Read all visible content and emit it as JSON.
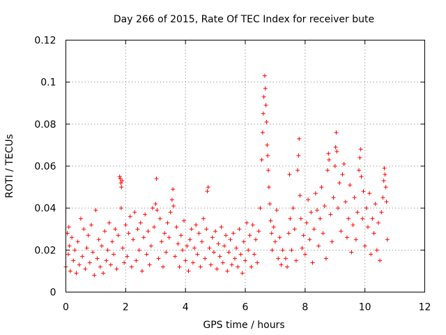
{
  "chart_data": {
    "type": "scatter",
    "title": "Day 266 of 2015, Rate Of TEC Index for receiver bute",
    "xlabel": "GPS time / hours",
    "ylabel": "ROTI / TECUs",
    "xlim": [
      0,
      12
    ],
    "ylim": [
      0,
      0.12
    ],
    "xticks": [
      0,
      2,
      4,
      6,
      8,
      10,
      12
    ],
    "xtick_labels": [
      "0",
      "2",
      "4",
      "6",
      "8",
      "10",
      "12"
    ],
    "yticks": [
      0,
      0.02,
      0.04,
      0.06,
      0.08,
      0.1,
      0.12
    ],
    "ytick_labels": [
      "0",
      "0.02",
      "0.04",
      "0.06",
      "0.08",
      "0.1",
      "0.12"
    ],
    "grid": true,
    "marker": "+",
    "series": [
      {
        "name": "ROTI",
        "color": "#ff0000",
        "points": [
          [
            0.0,
            0.012
          ],
          [
            0.05,
            0.028
          ],
          [
            0.08,
            0.018
          ],
          [
            0.1,
            0.031
          ],
          [
            0.12,
            0.022
          ],
          [
            0.15,
            0.01
          ],
          [
            0.2,
            0.026
          ],
          [
            0.25,
            0.015
          ],
          [
            0.3,
            0.02
          ],
          [
            0.35,
            0.009
          ],
          [
            0.4,
            0.024
          ],
          [
            0.45,
            0.013
          ],
          [
            0.5,
            0.035
          ],
          [
            0.55,
            0.017
          ],
          [
            0.6,
            0.03
          ],
          [
            0.65,
            0.011
          ],
          [
            0.7,
            0.021
          ],
          [
            0.75,
            0.027
          ],
          [
            0.8,
            0.014
          ],
          [
            0.85,
            0.032
          ],
          [
            0.9,
            0.019
          ],
          [
            0.95,
            0.008
          ],
          [
            1.0,
            0.039
          ],
          [
            1.05,
            0.016
          ],
          [
            1.1,
            0.025
          ],
          [
            1.15,
            0.012
          ],
          [
            1.2,
            0.022
          ],
          [
            1.25,
            0.009
          ],
          [
            1.3,
            0.029
          ],
          [
            1.35,
            0.015
          ],
          [
            1.4,
            0.02
          ],
          [
            1.45,
            0.033
          ],
          [
            1.5,
            0.013
          ],
          [
            1.55,
            0.024
          ],
          [
            1.6,
            0.018
          ],
          [
            1.65,
            0.03
          ],
          [
            1.7,
            0.011
          ],
          [
            1.75,
            0.027
          ],
          [
            1.8,
            0.055
          ],
          [
            1.82,
            0.054
          ],
          [
            1.84,
            0.052
          ],
          [
            1.86,
            0.05
          ],
          [
            1.88,
            0.053
          ],
          [
            1.85,
            0.04
          ],
          [
            1.9,
            0.021
          ],
          [
            1.95,
            0.014
          ],
          [
            2.0,
            0.032
          ],
          [
            2.05,
            0.017
          ],
          [
            2.1,
            0.028
          ],
          [
            2.15,
            0.036
          ],
          [
            2.2,
            0.012
          ],
          [
            2.25,
            0.025
          ],
          [
            2.3,
            0.038
          ],
          [
            2.35,
            0.015
          ],
          [
            2.4,
            0.03
          ],
          [
            2.45,
            0.02
          ],
          [
            2.5,
            0.033
          ],
          [
            2.55,
            0.01
          ],
          [
            2.6,
            0.026
          ],
          [
            2.65,
            0.037
          ],
          [
            2.7,
            0.018
          ],
          [
            2.75,
            0.029
          ],
          [
            2.8,
            0.013
          ],
          [
            2.85,
            0.022
          ],
          [
            2.9,
            0.04
          ],
          [
            2.95,
            0.031
          ],
          [
            3.0,
            0.042
          ],
          [
            3.03,
            0.054
          ],
          [
            3.05,
            0.039
          ],
          [
            3.1,
            0.016
          ],
          [
            3.15,
            0.035
          ],
          [
            3.2,
            0.024
          ],
          [
            3.25,
            0.012
          ],
          [
            3.3,
            0.028
          ],
          [
            3.35,
            0.019
          ],
          [
            3.4,
            0.033
          ],
          [
            3.45,
            0.026
          ],
          [
            3.5,
            0.038
          ],
          [
            3.55,
            0.044
          ],
          [
            3.58,
            0.049
          ],
          [
            3.6,
            0.041
          ],
          [
            3.65,
            0.017
          ],
          [
            3.7,
            0.031
          ],
          [
            3.75,
            0.023
          ],
          [
            3.8,
            0.012
          ],
          [
            3.85,
            0.027
          ],
          [
            3.9,
            0.02
          ],
          [
            3.95,
            0.034
          ],
          [
            4.0,
            0.015
          ],
          [
            4.05,
            0.022
          ],
          [
            4.1,
            0.01
          ],
          [
            4.15,
            0.025
          ],
          [
            4.2,
            0.03
          ],
          [
            4.25,
            0.014
          ],
          [
            4.3,
            0.021
          ],
          [
            4.35,
            0.032
          ],
          [
            4.4,
            0.018
          ],
          [
            4.45,
            0.028
          ],
          [
            4.5,
            0.012
          ],
          [
            4.55,
            0.024
          ],
          [
            4.6,
            0.035
          ],
          [
            4.65,
            0.016
          ],
          [
            4.7,
            0.03
          ],
          [
            4.73,
            0.048
          ],
          [
            4.76,
            0.05
          ],
          [
            4.8,
            0.021
          ],
          [
            4.85,
            0.013
          ],
          [
            4.9,
            0.026
          ],
          [
            4.95,
            0.019
          ],
          [
            5.0,
            0.029
          ],
          [
            5.05,
            0.011
          ],
          [
            5.1,
            0.023
          ],
          [
            5.15,
            0.017
          ],
          [
            5.2,
            0.031
          ],
          [
            5.25,
            0.014
          ],
          [
            5.3,
            0.022
          ],
          [
            5.35,
            0.027
          ],
          [
            5.4,
            0.01
          ],
          [
            5.45,
            0.019
          ],
          [
            5.5,
            0.025
          ],
          [
            5.55,
            0.013
          ],
          [
            5.6,
            0.028
          ],
          [
            5.65,
            0.016
          ],
          [
            5.7,
            0.021
          ],
          [
            5.75,
            0.012
          ],
          [
            5.8,
            0.03
          ],
          [
            5.85,
            0.018
          ],
          [
            5.9,
            0.009
          ],
          [
            5.95,
            0.024
          ],
          [
            6.0,
            0.015
          ],
          [
            6.05,
            0.033
          ],
          [
            6.1,
            0.02
          ],
          [
            6.15,
            0.027
          ],
          [
            6.2,
            0.012
          ],
          [
            6.25,
            0.032
          ],
          [
            6.3,
            0.018
          ],
          [
            6.35,
            0.025
          ],
          [
            6.4,
            0.014
          ],
          [
            6.45,
            0.029
          ],
          [
            6.5,
            0.04
          ],
          [
            6.55,
            0.063
          ],
          [
            6.58,
            0.076
          ],
          [
            6.6,
            0.085
          ],
          [
            6.62,
            0.093
          ],
          [
            6.65,
            0.103
          ],
          [
            6.67,
            0.097
          ],
          [
            6.69,
            0.089
          ],
          [
            6.71,
            0.081
          ],
          [
            6.73,
            0.07
          ],
          [
            6.75,
            0.065
          ],
          [
            6.77,
            0.058
          ],
          [
            6.79,
            0.05
          ],
          [
            6.82,
            0.042
          ],
          [
            6.85,
            0.034
          ],
          [
            6.88,
            0.028
          ],
          [
            6.9,
            0.02
          ],
          [
            6.95,
            0.031
          ],
          [
            7.0,
            0.024
          ],
          [
            7.05,
            0.039
          ],
          [
            7.1,
            0.016
          ],
          [
            7.15,
            0.026
          ],
          [
            7.2,
            0.013
          ],
          [
            7.25,
            0.02
          ],
          [
            7.35,
            0.016
          ],
          [
            7.4,
            0.012
          ],
          [
            7.45,
            0.028
          ],
          [
            7.48,
            0.056
          ],
          [
            7.5,
            0.035
          ],
          [
            7.55,
            0.02
          ],
          [
            7.6,
            0.04
          ],
          [
            7.65,
            0.03
          ],
          [
            7.7,
            0.015
          ],
          [
            7.75,
            0.058
          ],
          [
            7.78,
            0.065
          ],
          [
            7.8,
            0.073
          ],
          [
            7.83,
            0.046
          ],
          [
            7.86,
            0.035
          ],
          [
            7.9,
            0.021
          ],
          [
            7.95,
            0.027
          ],
          [
            8.0,
            0.018
          ],
          [
            8.05,
            0.033
          ],
          [
            8.1,
            0.044
          ],
          [
            8.15,
            0.025
          ],
          [
            8.2,
            0.038
          ],
          [
            8.25,
            0.014
          ],
          [
            8.3,
            0.03
          ],
          [
            8.35,
            0.047
          ],
          [
            8.4,
            0.039
          ],
          [
            8.45,
            0.022
          ],
          [
            8.5,
            0.035
          ],
          [
            8.55,
            0.05
          ],
          [
            8.6,
            0.028
          ],
          [
            8.65,
            0.041
          ],
          [
            8.7,
            0.016
          ],
          [
            8.75,
            0.058
          ],
          [
            8.78,
            0.066
          ],
          [
            8.8,
            0.063
          ],
          [
            8.85,
            0.037
          ],
          [
            8.9,
            0.024
          ],
          [
            8.95,
            0.045
          ],
          [
            9.0,
            0.06
          ],
          [
            9.02,
            0.069
          ],
          [
            9.04,
            0.076
          ],
          [
            9.06,
            0.067
          ],
          [
            9.1,
            0.04
          ],
          [
            9.15,
            0.052
          ],
          [
            9.2,
            0.029
          ],
          [
            9.25,
            0.056
          ],
          [
            9.3,
            0.061
          ],
          [
            9.35,
            0.043
          ],
          [
            9.4,
            0.026
          ],
          [
            9.45,
            0.035
          ],
          [
            9.5,
            0.051
          ],
          [
            9.55,
            0.019
          ],
          [
            9.6,
            0.032
          ],
          [
            9.65,
            0.045
          ],
          [
            9.7,
            0.025
          ],
          [
            9.75,
            0.038
          ],
          [
            9.8,
            0.058
          ],
          [
            9.83,
            0.064
          ],
          [
            9.86,
            0.068
          ],
          [
            9.88,
            0.055
          ],
          [
            9.92,
            0.035
          ],
          [
            9.95,
            0.048
          ],
          [
            10.0,
            0.022
          ],
          [
            10.05,
            0.04
          ],
          [
            10.1,
            0.031
          ],
          [
            10.15,
            0.047
          ],
          [
            10.2,
            0.018
          ],
          [
            10.25,
            0.035
          ],
          [
            10.3,
            0.028
          ],
          [
            10.35,
            0.042
          ],
          [
            10.4,
            0.02
          ],
          [
            10.45,
            0.033
          ],
          [
            10.5,
            0.015
          ],
          [
            10.55,
            0.038
          ],
          [
            10.6,
            0.045
          ],
          [
            10.63,
            0.053
          ],
          [
            10.65,
            0.059
          ],
          [
            10.67,
            0.056
          ],
          [
            10.7,
            0.05
          ],
          [
            10.72,
            0.043
          ],
          [
            10.75,
            0.025
          ]
        ]
      }
    ]
  }
}
